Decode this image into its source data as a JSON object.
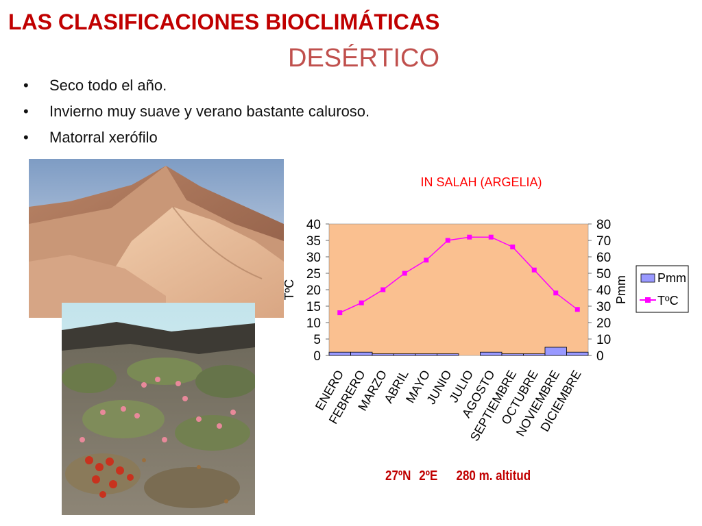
{
  "slide": {
    "title": "LAS CLASIFICACIONES BIOCLIMÁTICAS",
    "subtitle": "DESÉRTICO",
    "bullet_glyph": "•",
    "bullets": [
      "Seco todo el año.",
      "Invierno muy suave y verano bastante caluroso.",
      "Matorral xerófilo"
    ],
    "coords": {
      "lat_lon_a": "27ºN",
      "lat_lon_b": "2ºE",
      "altitude": "280 m. altitud"
    }
  },
  "photos": [
    {
      "name": "sand-dunes-photo",
      "subject": "desert sand dunes under pale sky"
    },
    {
      "name": "desert-shrubland-photo",
      "subject": "rocky desert slope with pink and red flowering shrubs"
    }
  ],
  "chart_data": {
    "type": "bar+line",
    "title": "IN SALAH (ARGELIA)",
    "categories": [
      "ENERO",
      "FEBRERO",
      "MARZO",
      "ABRIL",
      "MAYO",
      "JUNIO",
      "JULIO",
      "AGOSTO",
      "SEPTIEMBRE",
      "OCTUBRE",
      "NOVIEMBRE",
      "DICIEMBRE"
    ],
    "series": [
      {
        "name": "Pmm",
        "type": "bar",
        "axis": "right",
        "values": [
          2,
          2,
          1,
          1,
          1,
          1,
          0,
          2,
          1,
          1,
          5,
          2
        ],
        "color": "#9999ff"
      },
      {
        "name": "TºC",
        "type": "line",
        "axis": "left",
        "values": [
          13,
          16,
          20,
          25,
          29,
          35,
          36,
          36,
          33,
          26,
          19,
          14
        ],
        "color": "#ff00ff"
      }
    ],
    "ylabel_left": "TºC",
    "ylabel_right": "Pmm",
    "ylim_left": [
      0,
      40
    ],
    "yticks_left": [
      0,
      5,
      10,
      15,
      20,
      25,
      30,
      35,
      40
    ],
    "ylim_right": [
      0,
      80
    ],
    "yticks_right": [
      0,
      10,
      20,
      30,
      40,
      50,
      60,
      70,
      80
    ],
    "plot_background": "#fac090",
    "title_color": "#ff0000",
    "legend_position": "right"
  }
}
